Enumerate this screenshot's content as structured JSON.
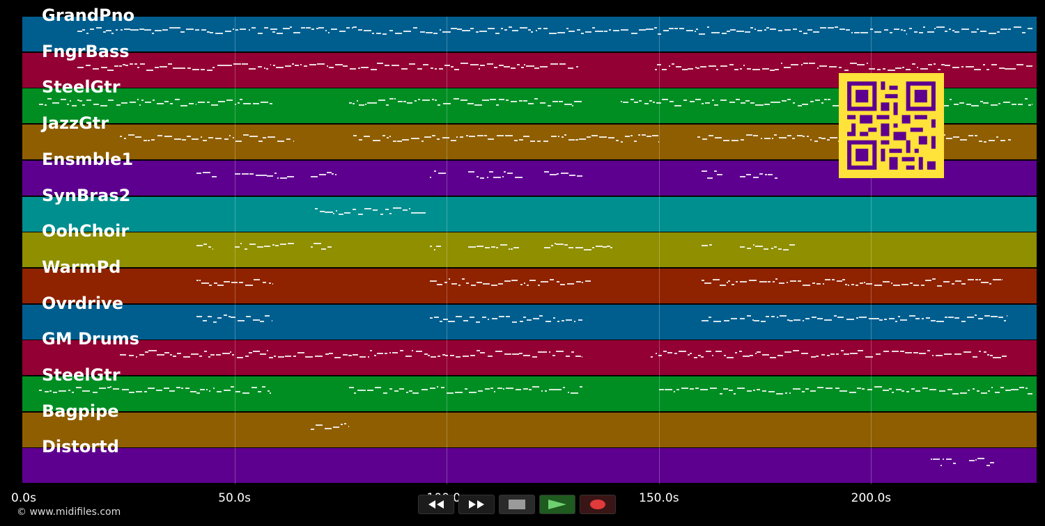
{
  "tracks": [
    {
      "name": "GrandPno",
      "color": "#005e8f"
    },
    {
      "name": "FngrBass",
      "color": "#930033"
    },
    {
      "name": "SteelGtr",
      "color": "#008e23"
    },
    {
      "name": "JazzGtr",
      "color": "#8f5e00"
    },
    {
      "name": "Ensmble1",
      "color": "#5e008f"
    },
    {
      "name": "SynBras2",
      "color": "#008f8f"
    },
    {
      "name": "OohChoir",
      "color": "#8f8f00"
    },
    {
      "name": "WarmPd",
      "color": "#8f2300"
    },
    {
      "name": "Ovrdrive",
      "color": "#005e8f"
    },
    {
      "name": "GM Drums",
      "color": "#930033"
    },
    {
      "name": "SteelGtr",
      "color": "#008e23"
    },
    {
      "name": "Bagpipe",
      "color": "#8f5e00"
    },
    {
      "name": "Distortd",
      "color": "#5e008f"
    }
  ],
  "time_axis": {
    "ticks": [
      "0.0s",
      "50.0s",
      "100.0s",
      "150.0s",
      "200.0s"
    ],
    "tick_seconds": [
      0,
      50,
      100,
      150,
      200
    ],
    "max_seconds": 239
  },
  "note_regions": [
    {
      "track": 0,
      "segments": [
        [
          13,
          60
        ],
        [
          59,
          78
        ],
        [
          78,
          135
        ],
        [
          135,
          238
        ]
      ]
    },
    {
      "track": 1,
      "segments": [
        [
          13,
          131
        ],
        [
          149,
          238
        ]
      ]
    },
    {
      "track": 2,
      "segments": [
        [
          4,
          59
        ],
        [
          77,
          132
        ],
        [
          141,
          238
        ]
      ]
    },
    {
      "track": 3,
      "segments": [
        [
          23,
          64
        ],
        [
          78,
          150
        ],
        [
          159,
          233
        ]
      ]
    },
    {
      "track": 4,
      "segments": [
        [
          41,
          46
        ],
        [
          50,
          64
        ],
        [
          68,
          74
        ],
        [
          96,
          100
        ],
        [
          105,
          118
        ],
        [
          123,
          132
        ],
        [
          160,
          165
        ],
        [
          169,
          178
        ]
      ]
    },
    {
      "track": 5,
      "segments": [
        [
          69,
          95
        ]
      ]
    },
    {
      "track": 6,
      "segments": [
        [
          41,
          45
        ],
        [
          50,
          64
        ],
        [
          68,
          73
        ],
        [
          96,
          99
        ],
        [
          105,
          117
        ],
        [
          123,
          139
        ],
        [
          160,
          163
        ],
        [
          169,
          182
        ]
      ]
    },
    {
      "track": 7,
      "segments": [
        [
          41,
          59
        ],
        [
          96,
          134
        ],
        [
          160,
          231
        ]
      ]
    },
    {
      "track": 8,
      "segments": [
        [
          41,
          59
        ],
        [
          96,
          132
        ],
        [
          160,
          232
        ]
      ]
    },
    {
      "track": 9,
      "segments": [
        [
          23,
          132
        ],
        [
          148,
          232
        ]
      ]
    },
    {
      "track": 10,
      "segments": [
        [
          4,
          59
        ],
        [
          77,
          132
        ],
        [
          150,
          238
        ]
      ]
    },
    {
      "track": 11,
      "segments": [
        [
          68,
          77
        ]
      ]
    },
    {
      "track": 12,
      "segments": [
        [
          214,
          220
        ],
        [
          223,
          229
        ]
      ]
    }
  ],
  "controls": {
    "rewind_icon": "rewind-icon",
    "forward_icon": "fast-forward-icon",
    "stop_icon": "stop-icon",
    "play_icon": "play-icon",
    "record_icon": "record-icon"
  },
  "qr_code": {
    "icon": "qr-code-icon",
    "color": "#ffe23a",
    "fg": "#5e008f"
  },
  "copyright": "© www.midifiles.com"
}
